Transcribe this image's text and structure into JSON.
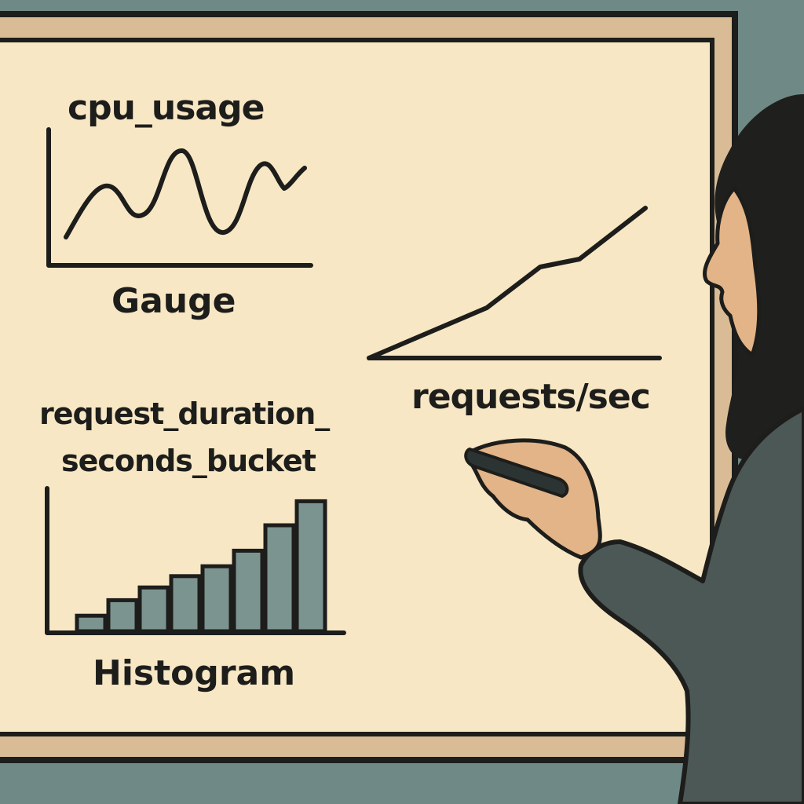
{
  "whiteboard": {
    "gauge_panel": {
      "metric_name": "cpu_usage",
      "caption": "Gauge"
    },
    "counter_panel": {
      "caption": "requests/sec"
    },
    "histogram_panel": {
      "metric_name_line1": "request_duration_",
      "metric_name_line2": "seconds_bucket",
      "caption": "Histogram",
      "bucket_levels": [
        0.11,
        0.22,
        0.31,
        0.39,
        0.46,
        0.57,
        0.75,
        0.92
      ]
    }
  },
  "colors": {
    "background": "#6f8a86",
    "board_frame": "#d9bc96",
    "board_surface": "#f7e7c4",
    "ink": "#1d1d1b",
    "bar_fill": "#7c948f",
    "skin": "#e2b487",
    "hoodie": "#4c5856",
    "hair": "#1f1f1d"
  }
}
